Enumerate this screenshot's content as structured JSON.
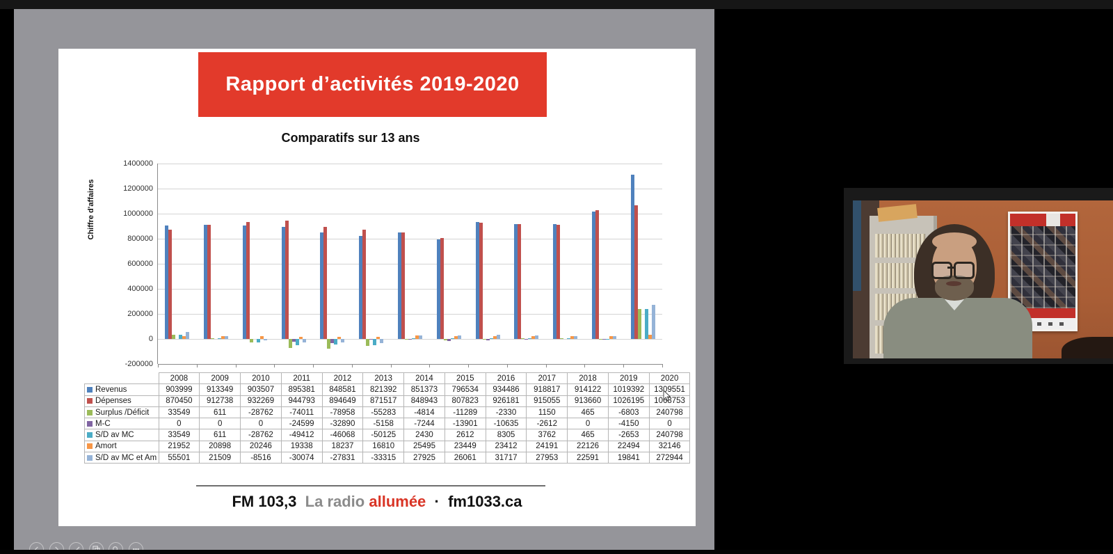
{
  "slide": {
    "banner_title": "Rapport d’activités 2019-2020",
    "footer": {
      "brand": "FM 103,3",
      "tagline_gray": "La radio",
      "tagline_red": "allumée",
      "separator": "·",
      "site": "fm1033.ca"
    }
  },
  "chart_data": {
    "type": "bar",
    "title": "Comparatifs sur 13 ans",
    "xlabel": "",
    "ylabel": "Chiffre d'affaires",
    "ylim": [
      -200000,
      1400000
    ],
    "ytick_step": 200000,
    "grid": true,
    "legend_position": "table-left",
    "categories": [
      "2008",
      "2009",
      "2010",
      "2011",
      "2012",
      "2013",
      "2014",
      "2015",
      "2016",
      "2017",
      "2018",
      "2019",
      "2020"
    ],
    "series": [
      {
        "name": "Revenus",
        "color": "#4F81BD",
        "values": [
          903999,
          913349,
          903507,
          895381,
          848581,
          821392,
          851373,
          796534,
          934486,
          918817,
          914122,
          1019392,
          1309551
        ]
      },
      {
        "name": "Dépenses",
        "color": "#C0504D",
        "values": [
          870450,
          912738,
          932269,
          944793,
          894649,
          871517,
          848943,
          807823,
          926181,
          915055,
          913660,
          1026195,
          1068753
        ]
      },
      {
        "name": "Surplus /Déficit",
        "color": "#9BBB59",
        "values": [
          33549,
          611,
          -28762,
          -74011,
          -78958,
          -55283,
          -4814,
          -11289,
          -2330,
          1150,
          465,
          -6803,
          240798
        ]
      },
      {
        "name": "M-C",
        "color": "#8064A2",
        "values": [
          0,
          0,
          0,
          -24599,
          -32890,
          -5158,
          -7244,
          -13901,
          -10635,
          -2612,
          0,
          -4150,
          0
        ]
      },
      {
        "name": "S/D av MC",
        "color": "#4BACC6",
        "values": [
          33549,
          611,
          -28762,
          -49412,
          -46068,
          -50125,
          2430,
          2612,
          8305,
          3762,
          465,
          -2653,
          240798
        ]
      },
      {
        "name": "Amort",
        "color": "#F79646",
        "values": [
          21952,
          20898,
          20246,
          19338,
          18237,
          16810,
          25495,
          23449,
          23412,
          24191,
          22126,
          22494,
          32146
        ]
      },
      {
        "name": "S/D av MC et Am",
        "color": "#95B3D7",
        "values": [
          55501,
          21509,
          -8516,
          -30074,
          -27831,
          -33315,
          27925,
          26061,
          31717,
          27953,
          22591,
          19841,
          272944
        ]
      }
    ]
  },
  "toolbar": {
    "items": [
      {
        "name": "previous-slide"
      },
      {
        "name": "next-slide"
      },
      {
        "name": "pen-tool"
      },
      {
        "name": "slide-panel"
      },
      {
        "name": "zoom-tool"
      },
      {
        "name": "more-options"
      }
    ]
  },
  "colors": {
    "banner_red": "#E23A2B",
    "share_area_gray": "#95959A",
    "footer_red": "#D93425",
    "footer_gray": "#8B8B8B"
  }
}
